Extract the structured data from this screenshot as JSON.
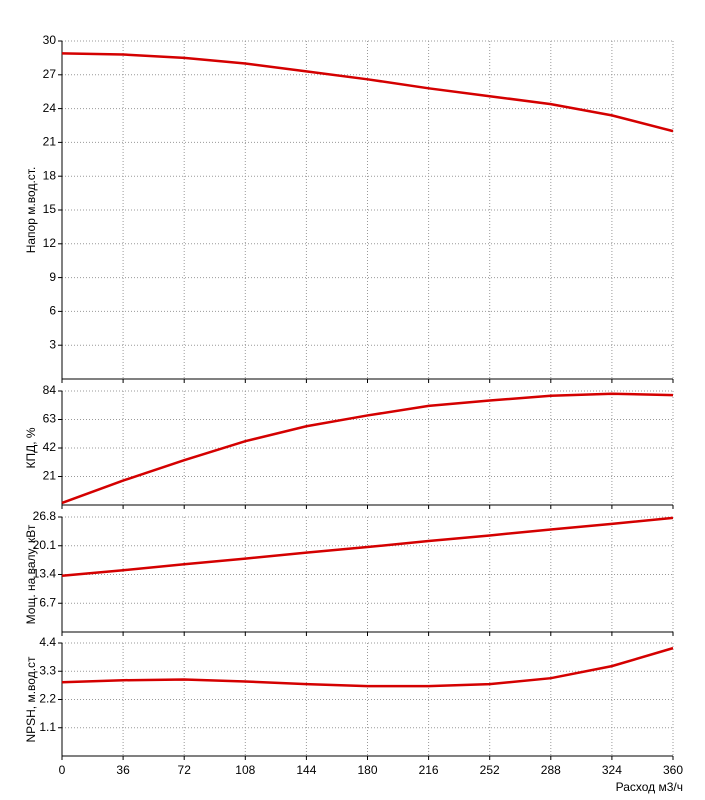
{
  "chart_data": [
    {
      "type": "line",
      "ylabel": "Напор м.вод.ст.",
      "x": [
        0,
        36,
        72,
        108,
        144,
        180,
        216,
        252,
        288,
        324,
        360
      ],
      "xlim": [
        0,
        360
      ],
      "xticks": [
        0,
        36,
        72,
        108,
        144,
        180,
        216,
        252,
        288,
        324,
        360
      ],
      "ylim": [
        0,
        30
      ],
      "yticks": [
        3,
        6,
        9,
        12,
        15,
        18,
        21,
        24,
        27,
        30
      ],
      "grid": true,
      "series": [
        {
          "color": "#d40000",
          "values": [
            28.9,
            28.8,
            28.5,
            28.0,
            27.3,
            26.6,
            25.8,
            25.1,
            24.4,
            23.4,
            22.0
          ]
        }
      ]
    },
    {
      "type": "line",
      "ylabel": "КПД, %",
      "x": [
        0,
        36,
        72,
        108,
        144,
        180,
        216,
        252,
        288,
        324,
        360
      ],
      "xlim": [
        0,
        360
      ],
      "xticks": [
        0,
        36,
        72,
        108,
        144,
        180,
        216,
        252,
        288,
        324,
        360
      ],
      "ylim": [
        0,
        84
      ],
      "yticks": [
        21,
        42,
        63,
        84
      ],
      "grid": true,
      "series": [
        {
          "color": "#d40000",
          "values": [
            1.5,
            18,
            33,
            47,
            58,
            66,
            73,
            77,
            80.5,
            82,
            81
          ]
        }
      ]
    },
    {
      "type": "line",
      "ylabel": "Мощ. на валу, кВт",
      "x": [
        0,
        36,
        72,
        108,
        144,
        180,
        216,
        252,
        288,
        324,
        360
      ],
      "xlim": [
        0,
        360
      ],
      "xticks": [
        0,
        36,
        72,
        108,
        144,
        180,
        216,
        252,
        288,
        324,
        360
      ],
      "ylim": [
        0,
        26.8
      ],
      "yticks": [
        6.7,
        13.4,
        20.1,
        26.8
      ],
      "grid": true,
      "series": [
        {
          "color": "#d40000",
          "values": [
            13.1,
            14.4,
            15.8,
            17.1,
            18.5,
            19.8,
            21.2,
            22.5,
            23.9,
            25.2,
            26.6
          ]
        }
      ]
    },
    {
      "type": "line",
      "ylabel": "NPSH, м.вод.ст",
      "xlabel": "Расход м3/ч",
      "x": [
        0,
        36,
        72,
        108,
        144,
        180,
        216,
        252,
        288,
        324,
        360
      ],
      "xlim": [
        0,
        360
      ],
      "xticks": [
        0,
        36,
        72,
        108,
        144,
        180,
        216,
        252,
        288,
        324,
        360
      ],
      "xticklabels": true,
      "ylim": [
        0,
        4.4
      ],
      "yticks": [
        1.1,
        2.2,
        3.3,
        4.4
      ],
      "grid": true,
      "series": [
        {
          "color": "#d40000",
          "values": [
            2.87,
            2.95,
            2.98,
            2.9,
            2.8,
            2.72,
            2.72,
            2.8,
            3.03,
            3.5,
            4.2
          ]
        }
      ]
    }
  ]
}
